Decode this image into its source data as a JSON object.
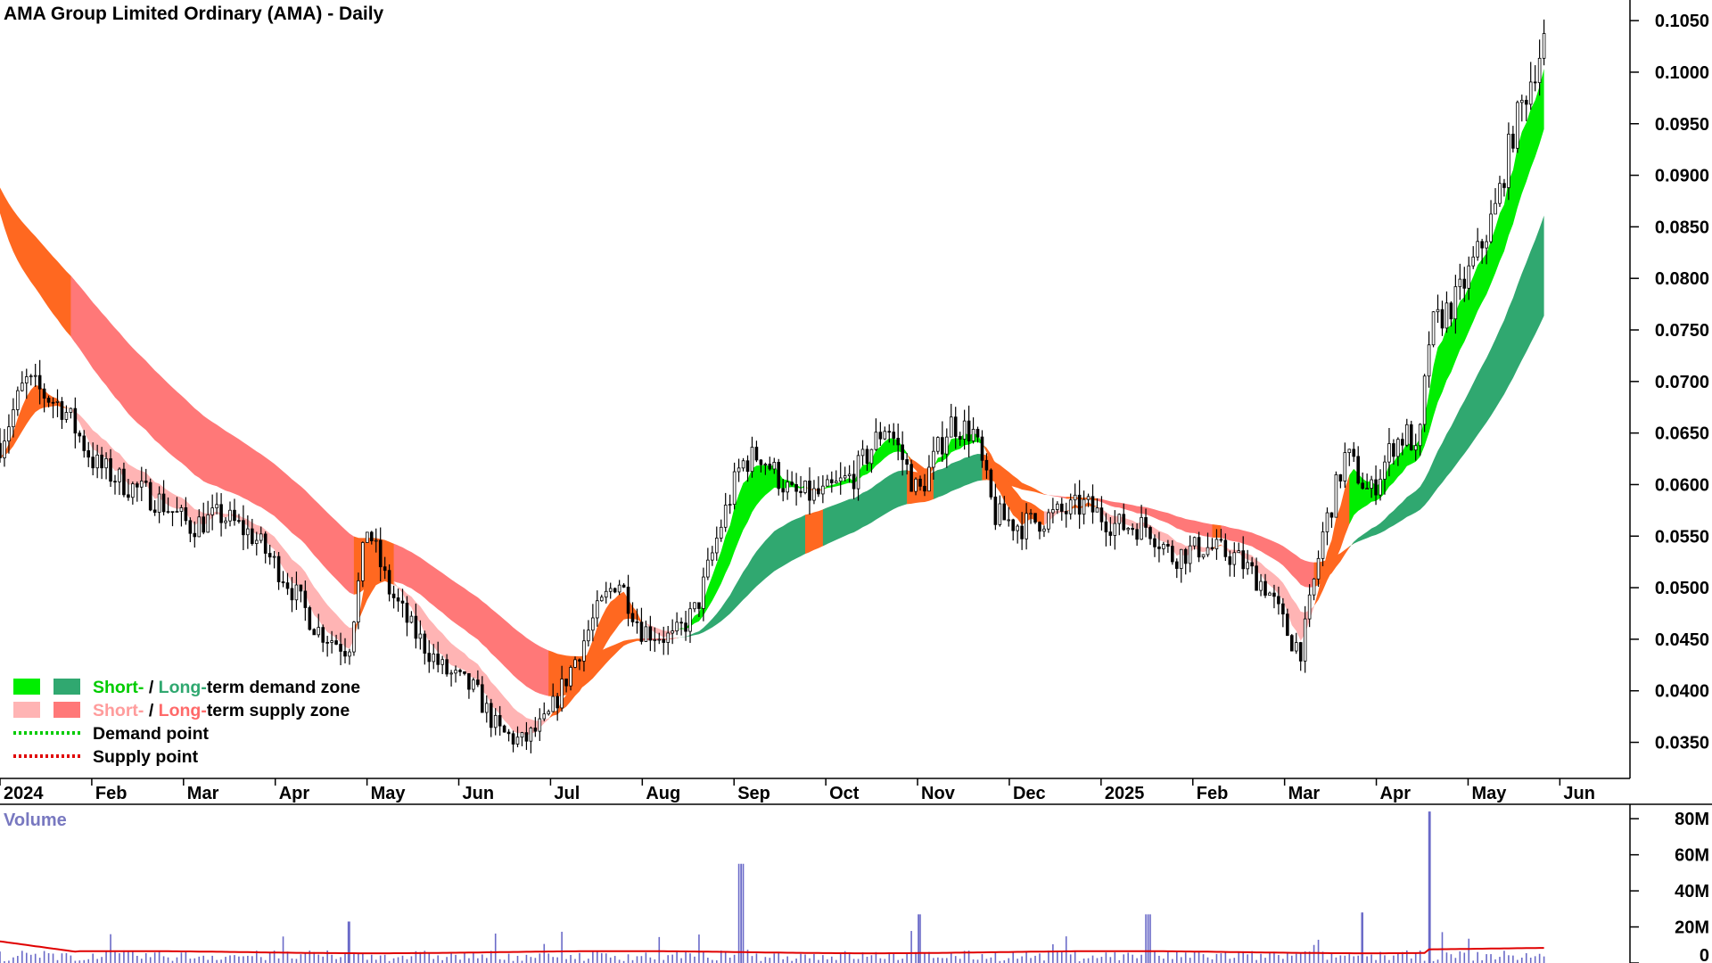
{
  "chart_data": {
    "type": "candlestick",
    "title": "AMA Group Limited Ordinary (AMA) - Daily",
    "price_axis": {
      "ticks": [
        "0.1050",
        "0.1000",
        "0.0950",
        "0.0900",
        "0.0850",
        "0.0800",
        "0.0750",
        "0.0700",
        "0.0650",
        "0.0600",
        "0.0550",
        "0.0500",
        "0.0450",
        "0.0400",
        "0.0350"
      ],
      "ylim": [
        0.0315,
        0.107
      ]
    },
    "x_axis": {
      "ticks": [
        "2024",
        "Feb",
        "Mar",
        "Apr",
        "May",
        "Jun",
        "Jul",
        "Aug",
        "Sep",
        "Oct",
        "Nov",
        "Dec",
        "2025",
        "Feb",
        "Mar",
        "Apr",
        "May",
        "Jun"
      ],
      "bold_ticks": [
        "2024",
        "2025"
      ]
    },
    "volume": {
      "label": "Volume",
      "ticks": [
        "80M",
        "60M",
        "40M",
        "20M",
        "0"
      ],
      "ylim": [
        0,
        88
      ],
      "unit": "M",
      "average_color": "#e00000",
      "bar_color": "#6a6ac8",
      "spikes": [
        {
          "x": 0.22,
          "v": 23
        },
        {
          "x": 0.468,
          "v": 55
        },
        {
          "x": 0.58,
          "v": 27
        },
        {
          "x": 0.725,
          "v": 27
        },
        {
          "x": 0.86,
          "v": 28
        },
        {
          "x": 0.903,
          "v": 84
        }
      ]
    },
    "price_anchors": [
      [
        0.0,
        0.064
      ],
      [
        0.016,
        0.07
      ],
      [
        0.04,
        0.0675
      ],
      [
        0.06,
        0.062
      ],
      [
        0.08,
        0.06
      ],
      [
        0.1,
        0.0585
      ],
      [
        0.12,
        0.056
      ],
      [
        0.14,
        0.057
      ],
      [
        0.16,
        0.055
      ],
      [
        0.18,
        0.051
      ],
      [
        0.2,
        0.046
      ],
      [
        0.22,
        0.044
      ],
      [
        0.232,
        0.056
      ],
      [
        0.245,
        0.05
      ],
      [
        0.26,
        0.046
      ],
      [
        0.28,
        0.042
      ],
      [
        0.3,
        0.04
      ],
      [
        0.315,
        0.036
      ],
      [
        0.33,
        0.035
      ],
      [
        0.345,
        0.037
      ],
      [
        0.36,
        0.042
      ],
      [
        0.375,
        0.047
      ],
      [
        0.39,
        0.051
      ],
      [
        0.405,
        0.046
      ],
      [
        0.425,
        0.045
      ],
      [
        0.44,
        0.048
      ],
      [
        0.455,
        0.056
      ],
      [
        0.468,
        0.062
      ],
      [
        0.48,
        0.063
      ],
      [
        0.5,
        0.059
      ],
      [
        0.52,
        0.059
      ],
      [
        0.54,
        0.061
      ],
      [
        0.56,
        0.066
      ],
      [
        0.58,
        0.059
      ],
      [
        0.6,
        0.066
      ],
      [
        0.615,
        0.065
      ],
      [
        0.628,
        0.057
      ],
      [
        0.645,
        0.056
      ],
      [
        0.665,
        0.057
      ],
      [
        0.685,
        0.058
      ],
      [
        0.705,
        0.056
      ],
      [
        0.725,
        0.056
      ],
      [
        0.74,
        0.053
      ],
      [
        0.76,
        0.054
      ],
      [
        0.78,
        0.053
      ],
      [
        0.8,
        0.05
      ],
      [
        0.815,
        0.045
      ],
      [
        0.822,
        0.044
      ],
      [
        0.835,
        0.055
      ],
      [
        0.85,
        0.063
      ],
      [
        0.865,
        0.059
      ],
      [
        0.88,
        0.064
      ],
      [
        0.89,
        0.065
      ],
      [
        0.895,
        0.062
      ],
      [
        0.903,
        0.075
      ],
      [
        0.92,
        0.078
      ],
      [
        0.935,
        0.083
      ],
      [
        0.945,
        0.087
      ],
      [
        0.955,
        0.094
      ],
      [
        0.968,
        0.1
      ],
      [
        0.975,
        0.103
      ]
    ],
    "zones": [
      {
        "name": "Short-term demand zone",
        "color": "#00ee00"
      },
      {
        "name": "Long-term demand zone",
        "color": "#30a870"
      },
      {
        "name": "Short-term supply zone",
        "color": "#ffb4b4"
      },
      {
        "name": "Long-term supply zone",
        "color": "#ff7878"
      },
      {
        "name": "Transition zone",
        "color": "#ff6820"
      }
    ]
  },
  "legend": [
    {
      "swatches": [
        "#00ee00",
        "#30a870"
      ],
      "parts": [
        {
          "text": "Short-",
          "color": "#00cc00"
        },
        {
          "text": " / ",
          "color": "#000000"
        },
        {
          "text": "Long-",
          "color": "#30a870"
        },
        {
          "text": "term demand zone",
          "color": "#000000"
        }
      ]
    },
    {
      "swatches": [
        "#ffb4b4",
        "#ff7878"
      ],
      "parts": [
        {
          "text": "Short-",
          "color": "#ff9c9c"
        },
        {
          "text": " / ",
          "color": "#000000"
        },
        {
          "text": "Long-",
          "color": "#ff6a6a"
        },
        {
          "text": "term supply zone",
          "color": "#000000"
        }
      ]
    },
    {
      "dotted": "#00cc00",
      "parts": [
        {
          "text": "Demand point",
          "color": "#000000"
        }
      ]
    },
    {
      "dotted": "#e00000",
      "parts": [
        {
          "text": "Supply point",
          "color": "#000000"
        }
      ]
    }
  ]
}
